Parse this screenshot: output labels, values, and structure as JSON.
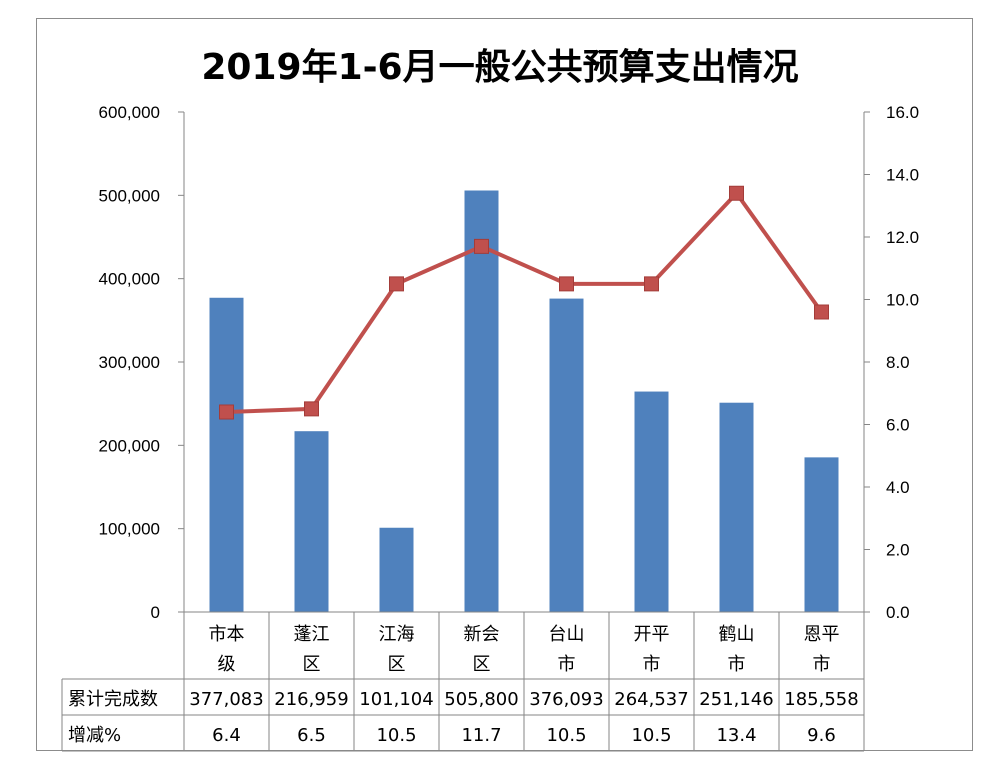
{
  "chart_data": {
    "type": "bar+line",
    "title": "2019年1-6月一般公共预算支出情况",
    "categories": [
      "市本级",
      "蓬江区",
      "江海区",
      "新会区",
      "台山市",
      "开平市",
      "鹤山市",
      "恩平市"
    ],
    "category_lines": [
      [
        "市本",
        "级"
      ],
      [
        "蓬江",
        "区"
      ],
      [
        "江海",
        "区"
      ],
      [
        "新会",
        "区"
      ],
      [
        "台山",
        "市"
      ],
      [
        "开平",
        "市"
      ],
      [
        "鹤山",
        "市"
      ],
      [
        "恩平",
        "市"
      ]
    ],
    "series": [
      {
        "name": "累计完成数",
        "type": "bar",
        "axis": "left",
        "color": "#4f81bd",
        "values": [
          377083,
          216959,
          101104,
          505800,
          376093,
          264537,
          251146,
          185558
        ],
        "labels": [
          "377,083",
          "216,959",
          "101,104",
          "505,800",
          "376,093",
          "264,537",
          "251,146",
          "185,558"
        ]
      },
      {
        "name": "增减%",
        "type": "line",
        "axis": "right",
        "color": "#c0504d",
        "values": [
          6.4,
          6.5,
          10.5,
          11.7,
          10.5,
          10.5,
          13.4,
          9.6
        ],
        "labels": [
          "6.4",
          "6.5",
          "10.5",
          "11.7",
          "10.5",
          "10.5",
          "13.4",
          "9.6"
        ]
      }
    ],
    "left_axis": {
      "ylim": [
        0,
        600000
      ],
      "ticks": [
        "0",
        "100,000",
        "200,000",
        "300,000",
        "400,000",
        "500,000",
        "600,000"
      ]
    },
    "right_axis": {
      "ylim": [
        0,
        16
      ],
      "ticks": [
        "0.0",
        "2.0",
        "4.0",
        "6.0",
        "8.0",
        "10.0",
        "12.0",
        "14.0",
        "16.0"
      ]
    },
    "grid": false,
    "legend": "data-table"
  }
}
